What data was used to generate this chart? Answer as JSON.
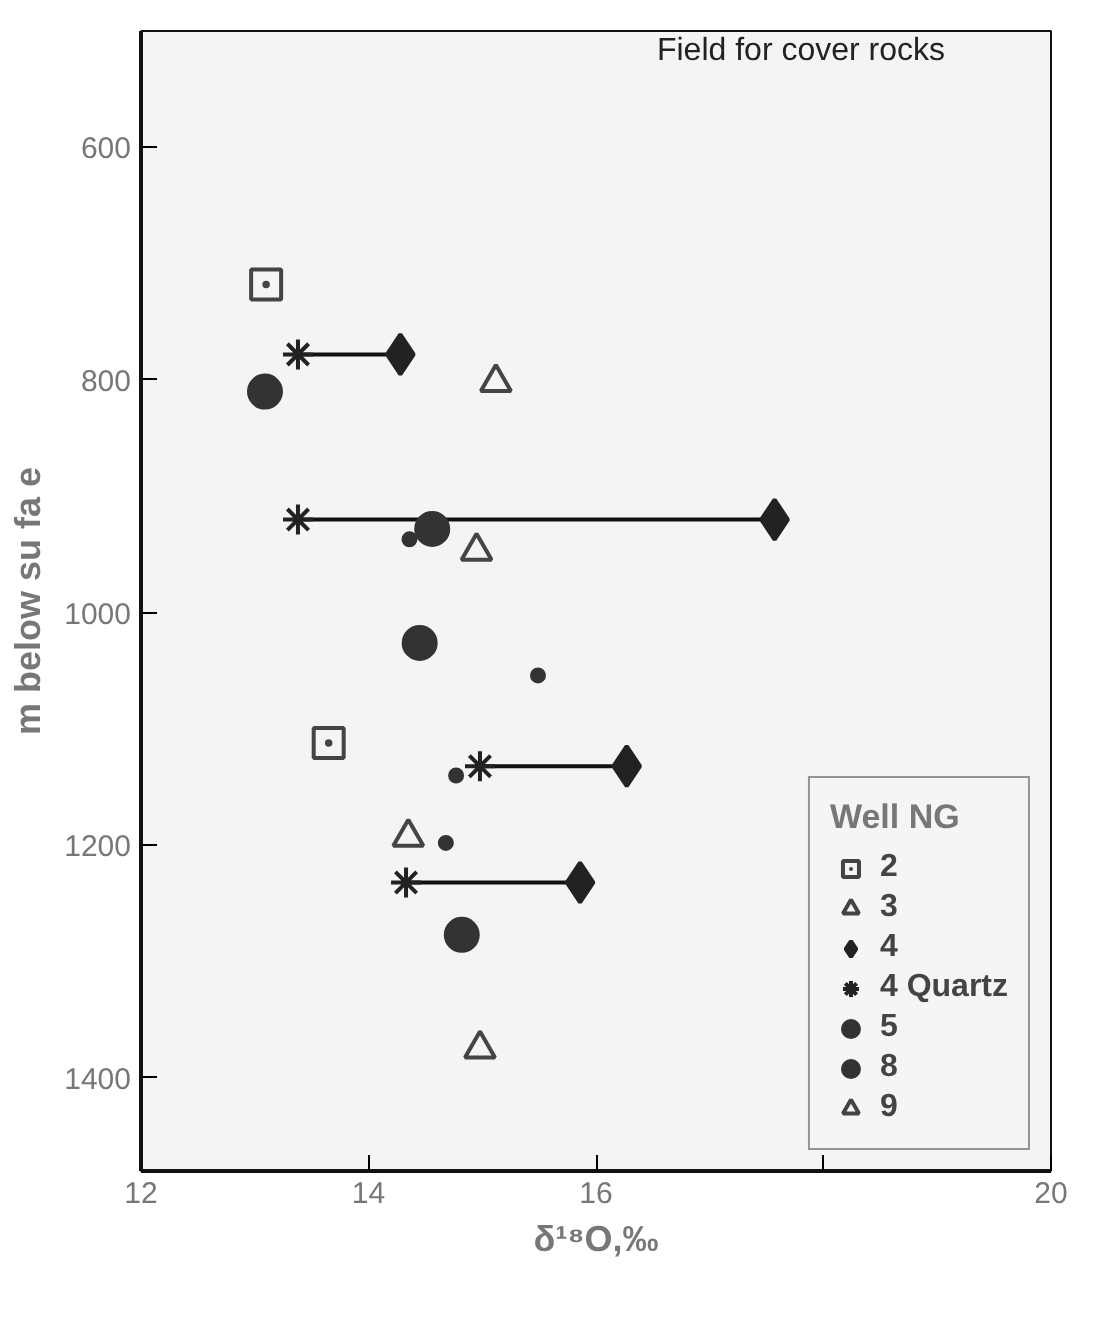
{
  "chart_data": {
    "type": "scatter",
    "xlabel": "δ¹⁸O,‰",
    "ylabel": "m below su fa e",
    "legend_title": "Well NG",
    "legend": "bottom right",
    "grid": false,
    "xlim": [
      12,
      20
    ],
    "ylim": [
      1480,
      500
    ],
    "xticks": [
      12,
      14,
      16,
      {
        "value": 18,
        "label": null
      },
      20
    ],
    "yticks": [
      600,
      800,
      1000,
      1200,
      1400
    ],
    "annotations": [
      "Field for cover rocks"
    ],
    "series": [
      {
        "type": "line",
        "marker": "none",
        "color": "#111111",
        "x": [
          13.38,
          14.28
        ],
        "values": [
          778,
          778
        ]
      },
      {
        "type": "line",
        "marker": "none",
        "color": "#111111",
        "x": [
          13.38,
          17.57
        ],
        "values": [
          920,
          920
        ]
      },
      {
        "type": "line",
        "marker": "none",
        "color": "#111111",
        "x": [
          14.98,
          16.27
        ],
        "values": [
          1132,
          1132
        ]
      },
      {
        "type": "line",
        "marker": "none",
        "color": "#111111",
        "x": [
          14.33,
          15.86
        ],
        "values": [
          1232,
          1232
        ]
      },
      {
        "name": "2",
        "marker": "square",
        "color": "#444444",
        "x": [
          13.1,
          13.65
        ],
        "values": [
          718,
          1112
        ]
      },
      {
        "name": "3",
        "marker": "triangle",
        "color": "#444444",
        "x": [
          14.35,
          14.98
        ],
        "values": [
          1193,
          1375
        ]
      },
      {
        "name": "4",
        "marker": "diamond",
        "color": "#222222",
        "x": [
          14.28,
          17.57,
          16.27,
          15.86
        ],
        "values": [
          778,
          920,
          1132,
          1232
        ]
      },
      {
        "name": "4 Quartz",
        "marker": "cross",
        "color": "#222222",
        "x": [
          13.38,
          13.38,
          14.98,
          14.33
        ],
        "values": [
          778,
          920,
          1132,
          1232
        ]
      },
      {
        "name": "5",
        "marker": "circle",
        "color": "#333333",
        "x": [
          13.09,
          14.56,
          14.45,
          14.82
        ],
        "values": [
          810,
          928,
          1026,
          1277
        ]
      },
      {
        "name": "8",
        "marker": "dot",
        "color": "#333333",
        "x": [
          14.36,
          15.49,
          14.77,
          14.68
        ],
        "values": [
          937,
          1054,
          1140,
          1198
        ]
      },
      {
        "name": "9",
        "marker": "triangle",
        "color": "#444444",
        "x": [
          15.12,
          14.95
        ],
        "values": [
          802,
          947
        ]
      }
    ]
  }
}
